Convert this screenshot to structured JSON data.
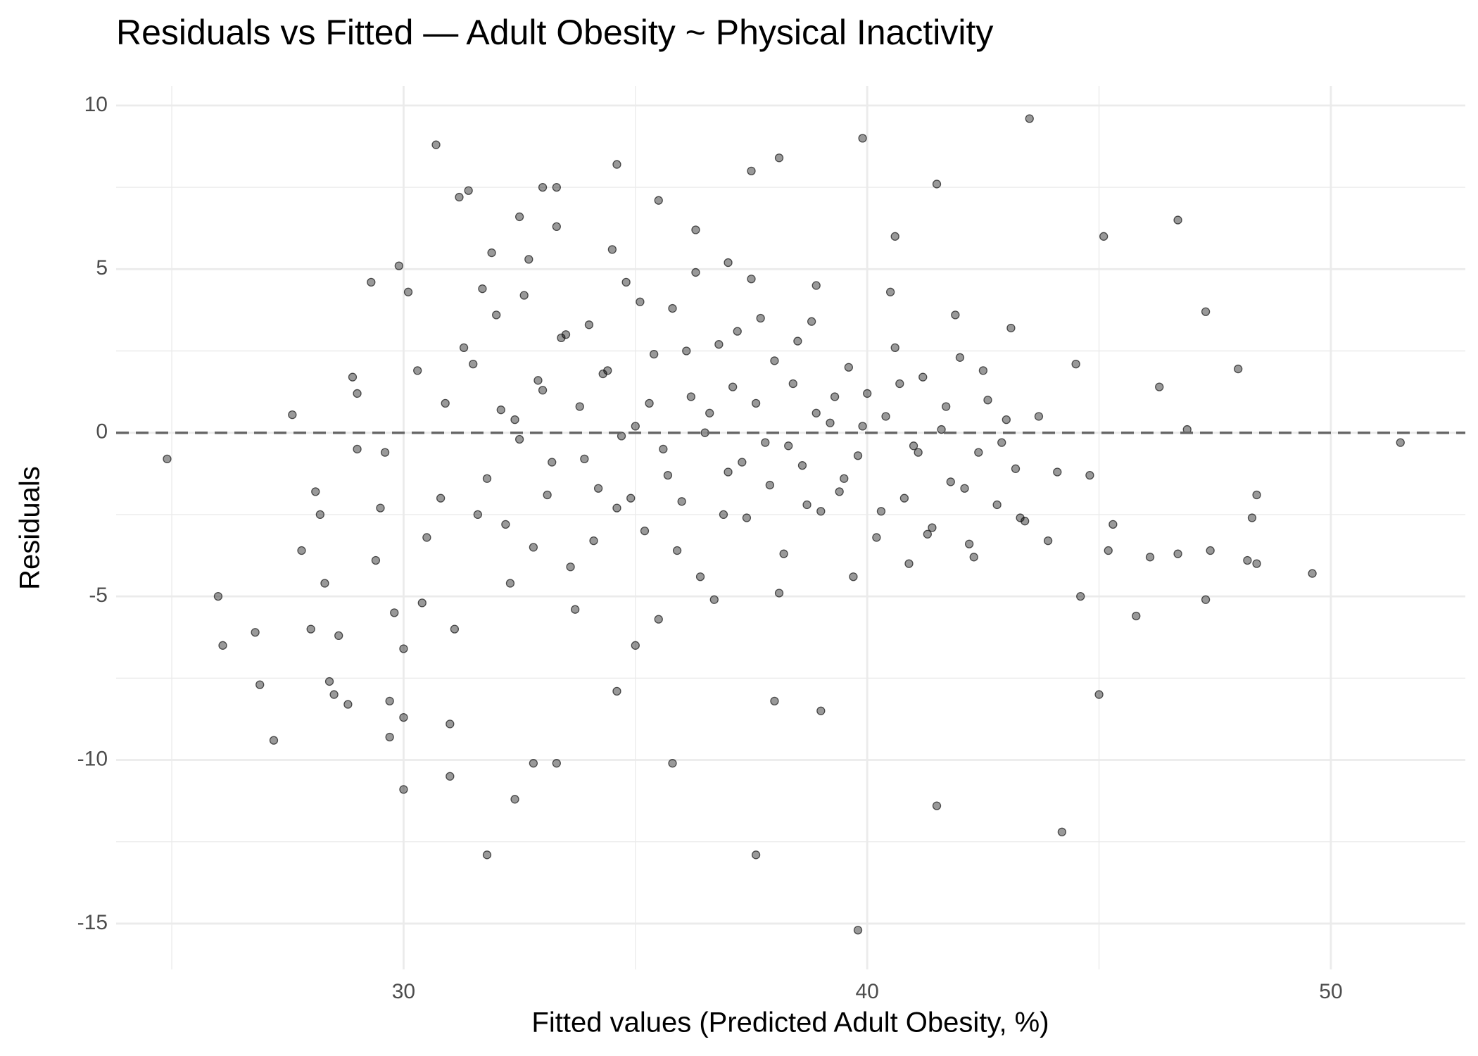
{
  "chart_data": {
    "type": "scatter",
    "title": "Residuals vs Fitted — Adult Obesity ~ Physical Inactivity",
    "x_label": "Fitted values (Predicted Adult Obesity, %)",
    "y_label": "Residuals",
    "color": "#000000",
    "opacity": 0.4,
    "grid": true,
    "hline": 0,
    "xlim": [
      23.8,
      52.9
    ],
    "xticks": [
      30,
      40,
      50
    ],
    "ylim": [
      -16.4,
      10.6
    ],
    "yticks": [
      -15,
      -10,
      -5,
      0,
      5,
      10
    ],
    "x": [
      24.9,
      26.0,
      26.1,
      26.8,
      26.9,
      27.2,
      27.6,
      27.8,
      28.0,
      28.1,
      28.2,
      28.3,
      28.4,
      28.5,
      28.6,
      28.8,
      28.9,
      29.0,
      29.0,
      29.3,
      29.4,
      29.6,
      29.7,
      29.7,
      29.8,
      29.9,
      30.0,
      30.0,
      30.0,
      30.1,
      30.4,
      30.7,
      30.8,
      31.0,
      31.2,
      31.0,
      31.4,
      31.8,
      31.9,
      32.4,
      32.5,
      32.8,
      33.0,
      33.3,
      33.3,
      34.6,
      34.6,
      35.5,
      35.8,
      36.3,
      37.5,
      38.1,
      37.6,
      38.0,
      39.0,
      39.8,
      39.9,
      40.6,
      41.5,
      41.5,
      43.5,
      44.2,
      45.1,
      45.0,
      46.7,
      47.3,
      47.3,
      47.4,
      48.0,
      48.2,
      48.4,
      48.3,
      48.4,
      49.6,
      51.5,
      46.9,
      46.7,
      46.1,
      45.8,
      45.2,
      44.6,
      44.8,
      31.5,
      31.8,
      32.0,
      32.2,
      32.4,
      32.6,
      32.8,
      33.0,
      33.2,
      33.4,
      33.6,
      33.8,
      34.0,
      34.2,
      34.4,
      34.6,
      34.8,
      35.0,
      35.2,
      35.4,
      35.6,
      35.8,
      36.0,
      36.2,
      36.4,
      36.6,
      36.8,
      37.0,
      37.2,
      37.4,
      37.6,
      37.8,
      38.0,
      38.2,
      38.4,
      38.6,
      38.8,
      39.0,
      39.2,
      39.4,
      39.6,
      39.8,
      40.0,
      40.2,
      40.4,
      40.6,
      40.8,
      41.0,
      41.2,
      41.4,
      41.6,
      41.8,
      42.0,
      42.2,
      42.4,
      42.6,
      42.8,
      43.0,
      43.2,
      43.4,
      31.6,
      32.1,
      32.5,
      32.9,
      33.1,
      33.5,
      33.9,
      34.1,
      34.3,
      34.7,
      34.9,
      35.1,
      35.3,
      35.7,
      35.9,
      36.1,
      36.5,
      36.9,
      37.1,
      37.3,
      37.7,
      37.9,
      38.3,
      38.5,
      38.7,
      38.9,
      39.3,
      39.5,
      39.9,
      40.3,
      40.7,
      41.1,
      41.3,
      41.7,
      42.1,
      42.5,
      42.9,
      43.3,
      43.7,
      44.1,
      30.5,
      30.9,
      31.3,
      31.7,
      32.3,
      32.7,
      33.7,
      34.5,
      35.5,
      36.3,
      36.7,
      37.5,
      38.1,
      38.9,
      39.7,
      40.5,
      40.9,
      41.9,
      42.3,
      43.1,
      43.9,
      44.5,
      45.3,
      46.3,
      29.5,
      30.3,
      31.1,
      33.3,
      35.0,
      37.0
    ],
    "y": [
      -0.8,
      -5.0,
      -6.5,
      -6.1,
      -7.7,
      -9.4,
      0.55,
      -3.6,
      -6.0,
      -1.8,
      -2.5,
      -4.6,
      -7.6,
      -8.0,
      -6.2,
      -8.3,
      1.7,
      1.2,
      -0.5,
      4.6,
      -3.9,
      -0.6,
      -8.2,
      -9.3,
      -5.5,
      5.1,
      -10.9,
      -8.7,
      -6.6,
      4.3,
      -5.2,
      8.8,
      -2.0,
      -10.5,
      7.2,
      -8.9,
      7.4,
      -12.9,
      5.5,
      -11.2,
      6.6,
      -10.1,
      7.5,
      7.5,
      -10.1,
      8.2,
      -7.9,
      7.1,
      -10.1,
      6.2,
      8.0,
      8.4,
      -12.9,
      -8.2,
      -8.5,
      -15.2,
      9.0,
      6.0,
      -11.4,
      7.6,
      9.6,
      -12.2,
      6.0,
      -8.0,
      6.5,
      3.7,
      -5.1,
      -3.6,
      1.95,
      -3.9,
      -1.9,
      -2.6,
      -4.0,
      -4.3,
      -0.3,
      0.1,
      -3.7,
      -3.8,
      -5.6,
      -3.6,
      -5.0,
      -1.3,
      2.1,
      -1.4,
      3.6,
      -2.8,
      0.4,
      4.2,
      -3.5,
      1.3,
      -0.9,
      2.9,
      -4.1,
      0.8,
      3.3,
      -1.7,
      1.9,
      -2.3,
      4.6,
      0.2,
      -3.0,
      2.4,
      -0.5,
      3.8,
      -2.1,
      1.1,
      -4.4,
      0.6,
      2.7,
      -1.2,
      3.1,
      -2.6,
      0.9,
      -0.3,
      2.2,
      -3.7,
      1.5,
      -1.0,
      3.4,
      -2.4,
      0.3,
      -1.8,
      2.0,
      -0.7,
      1.2,
      -3.2,
      0.5,
      2.6,
      -2.0,
      -0.4,
      1.7,
      -2.9,
      0.1,
      -1.5,
      2.3,
      -3.4,
      -0.6,
      1.0,
      -2.2,
      0.4,
      -1.1,
      -2.7,
      -2.5,
      0.7,
      -0.2,
      1.6,
      -1.9,
      3.0,
      -0.8,
      -3.3,
      1.8,
      -0.1,
      -2.0,
      4.0,
      0.9,
      -1.3,
      -3.6,
      2.5,
      0.0,
      -2.5,
      1.4,
      -0.9,
      3.5,
      -1.6,
      -0.4,
      2.8,
      -2.2,
      0.6,
      1.1,
      -1.4,
      0.2,
      -2.4,
      1.5,
      -0.6,
      -3.1,
      0.8,
      -1.7,
      1.9,
      -0.3,
      -2.6,
      0.5,
      -1.2,
      -3.2,
      0.9,
      2.6,
      4.4,
      -4.6,
      5.3,
      -5.4,
      5.6,
      -5.7,
      4.9,
      -5.1,
      4.7,
      -4.9,
      4.5,
      -4.4,
      4.3,
      -4.0,
      3.6,
      -3.8,
      3.2,
      -3.3,
      2.1,
      -2.8,
      1.4,
      -2.3,
      1.9,
      -6.0,
      6.3,
      -6.5,
      5.2
    ]
  }
}
